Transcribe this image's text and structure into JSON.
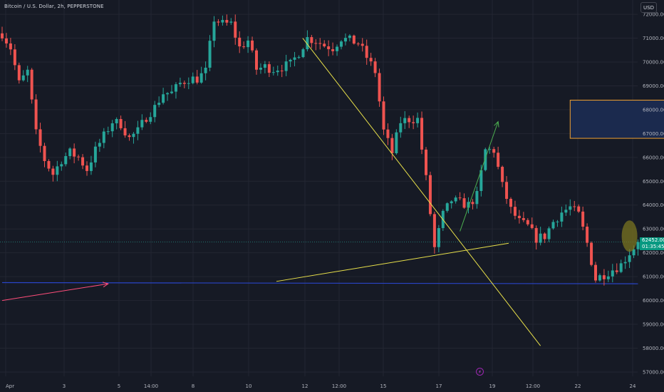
{
  "header": {
    "symbol_title": "Bitcoin / U.S. Dollar, 2h, PEPPERSTONE",
    "currency_button": "USD"
  },
  "price_badge": {
    "price": "62452.00",
    "countdown": "01:35:45"
  },
  "colors": {
    "background": "#161a25",
    "grid": "#232632",
    "up_candle": "#26a69a",
    "down_candle": "#ef5350",
    "trendline": "#e8e04a",
    "support_line": "#2944c7",
    "target_box_border": "#f0a030",
    "target_box_fill": "#1b2a4e",
    "projection_arrow": "#4caf50",
    "pink_arrow": "#ff4d7a",
    "marker_blob": "#7a7420"
  },
  "chart_data": {
    "type": "candlestick",
    "title": "Bitcoin / U.S. Dollar, 2h, PEPPERSTONE",
    "ylim": [
      56700,
      72600
    ],
    "y_ticks": [
      "72000.00",
      "71000.00",
      "70000.00",
      "69000.00",
      "68000.00",
      "67000.00",
      "66000.00",
      "65000.00",
      "64000.00",
      "63000.00",
      "62000.00",
      "61000.00",
      "60000.00",
      "59000.00",
      "58000.00",
      "57000.00"
    ],
    "x_ticks": [
      "Apr",
      "3",
      "5",
      "14:00",
      "8",
      "10",
      "12",
      "12:00",
      "15",
      "17",
      "19",
      "12:00",
      "22",
      "24"
    ],
    "grid": true,
    "last_price": 62452.0,
    "price_path": [
      [
        0,
        71200
      ],
      [
        2,
        70600
      ],
      [
        4,
        69100
      ],
      [
        6,
        69600
      ],
      [
        8,
        67000
      ],
      [
        10,
        65900
      ],
      [
        12,
        65300
      ],
      [
        14,
        65900
      ],
      [
        16,
        66200
      ],
      [
        18,
        66000
      ],
      [
        20,
        65500
      ],
      [
        22,
        66300
      ],
      [
        24,
        66900
      ],
      [
        26,
        67500
      ],
      [
        28,
        67400
      ],
      [
        30,
        66800
      ],
      [
        32,
        67100
      ],
      [
        34,
        67700
      ],
      [
        36,
        68100
      ],
      [
        38,
        68700
      ],
      [
        40,
        68700
      ],
      [
        42,
        69100
      ],
      [
        44,
        69300
      ],
      [
        46,
        69300
      ],
      [
        48,
        69600
      ],
      [
        50,
        71800
      ],
      [
        52,
        71600
      ],
      [
        54,
        71600
      ],
      [
        56,
        70600
      ],
      [
        58,
        70900
      ],
      [
        60,
        69700
      ],
      [
        62,
        69800
      ],
      [
        64,
        69700
      ],
      [
        66,
        69800
      ],
      [
        68,
        69900
      ],
      [
        70,
        70400
      ],
      [
        72,
        71000
      ],
      [
        74,
        70900
      ],
      [
        76,
        70700
      ],
      [
        78,
        70600
      ],
      [
        80,
        71000
      ],
      [
        82,
        70900
      ],
      [
        84,
        70800
      ],
      [
        86,
        70200
      ],
      [
        88,
        69600
      ],
      [
        90,
        67100
      ],
      [
        92,
        66200
      ],
      [
        94,
        67500
      ],
      [
        96,
        67600
      ],
      [
        98,
        67600
      ],
      [
        100,
        65100
      ],
      [
        102,
        62200
      ],
      [
        104,
        63600
      ],
      [
        106,
        64200
      ],
      [
        108,
        64100
      ],
      [
        110,
        64000
      ],
      [
        112,
        64400
      ],
      [
        114,
        66300
      ],
      [
        116,
        66300
      ],
      [
        118,
        64800
      ],
      [
        120,
        63800
      ],
      [
        122,
        63300
      ],
      [
        124,
        63100
      ],
      [
        126,
        62600
      ],
      [
        128,
        62700
      ],
      [
        130,
        63300
      ],
      [
        132,
        63700
      ],
      [
        134,
        63900
      ],
      [
        136,
        63600
      ],
      [
        138,
        62400
      ],
      [
        140,
        60900
      ],
      [
        142,
        61100
      ],
      [
        144,
        61300
      ],
      [
        146,
        61500
      ],
      [
        148,
        62000
      ],
      [
        150,
        62452
      ]
    ],
    "annotations": {
      "descending_trendline": [
        [
          70.9,
          71000
        ],
        [
          127.0,
          58100
        ]
      ],
      "ascending_trendline": [
        [
          64.7,
          60800
        ],
        [
          119.5,
          62400
        ]
      ],
      "support_line": [
        [
          0,
          60750
        ],
        [
          150,
          60700
        ]
      ],
      "target_box": {
        "from": 134,
        "to": 157,
        "top": 68400,
        "bottom": 66800
      },
      "projection_arrow": [
        [
          108,
          62900
        ],
        [
          117,
          67500
        ]
      ],
      "incoming_arrow": [
        [
          0,
          60000
        ],
        [
          25,
          60700
        ]
      ]
    }
  },
  "bottom_marker": "⚡"
}
